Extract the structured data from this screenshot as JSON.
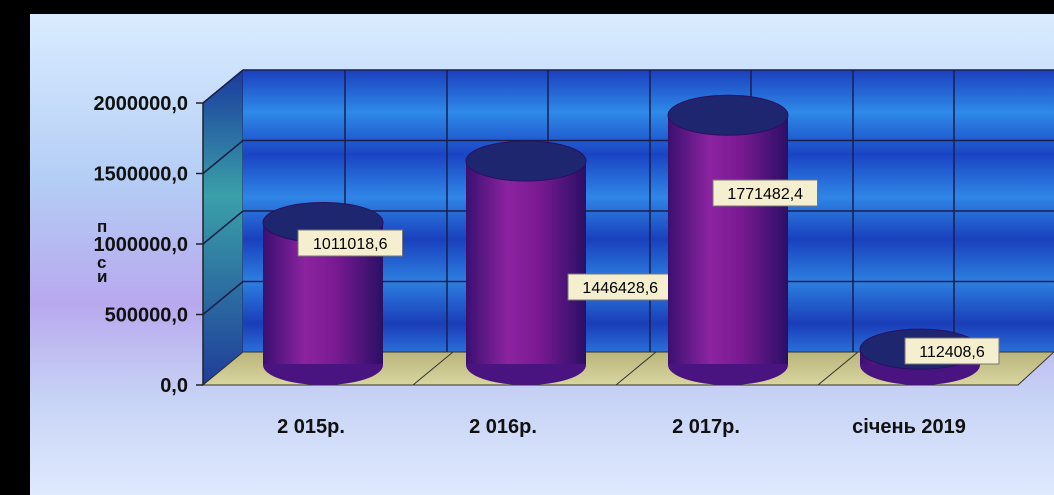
{
  "chart_data": {
    "type": "bar",
    "title": "",
    "xlabel": "",
    "ylabel": "",
    "categories": [
      "2 015р.",
      "2 016р.",
      "2 017р.",
      "січень 2019"
    ],
    "values": [
      1011018.6,
      1446428.6,
      1771482.4,
      112408.6
    ],
    "value_labels": [
      "1011018,6",
      "1446428,6",
      "1771482,4",
      "112408,6"
    ],
    "y_ticks": [
      "0,0",
      "500000,0",
      "1000000,0",
      "1500000,0",
      "2000000,0"
    ],
    "ylim": [
      0,
      2000000
    ],
    "grid": true,
    "legend": "none",
    "colors": {
      "bar": "#7a1a8c",
      "bar_top": "#1e2a6e",
      "wall": "#2a5fd6",
      "floor": "#c8c68a",
      "label_bg": "#f5efcf"
    }
  }
}
